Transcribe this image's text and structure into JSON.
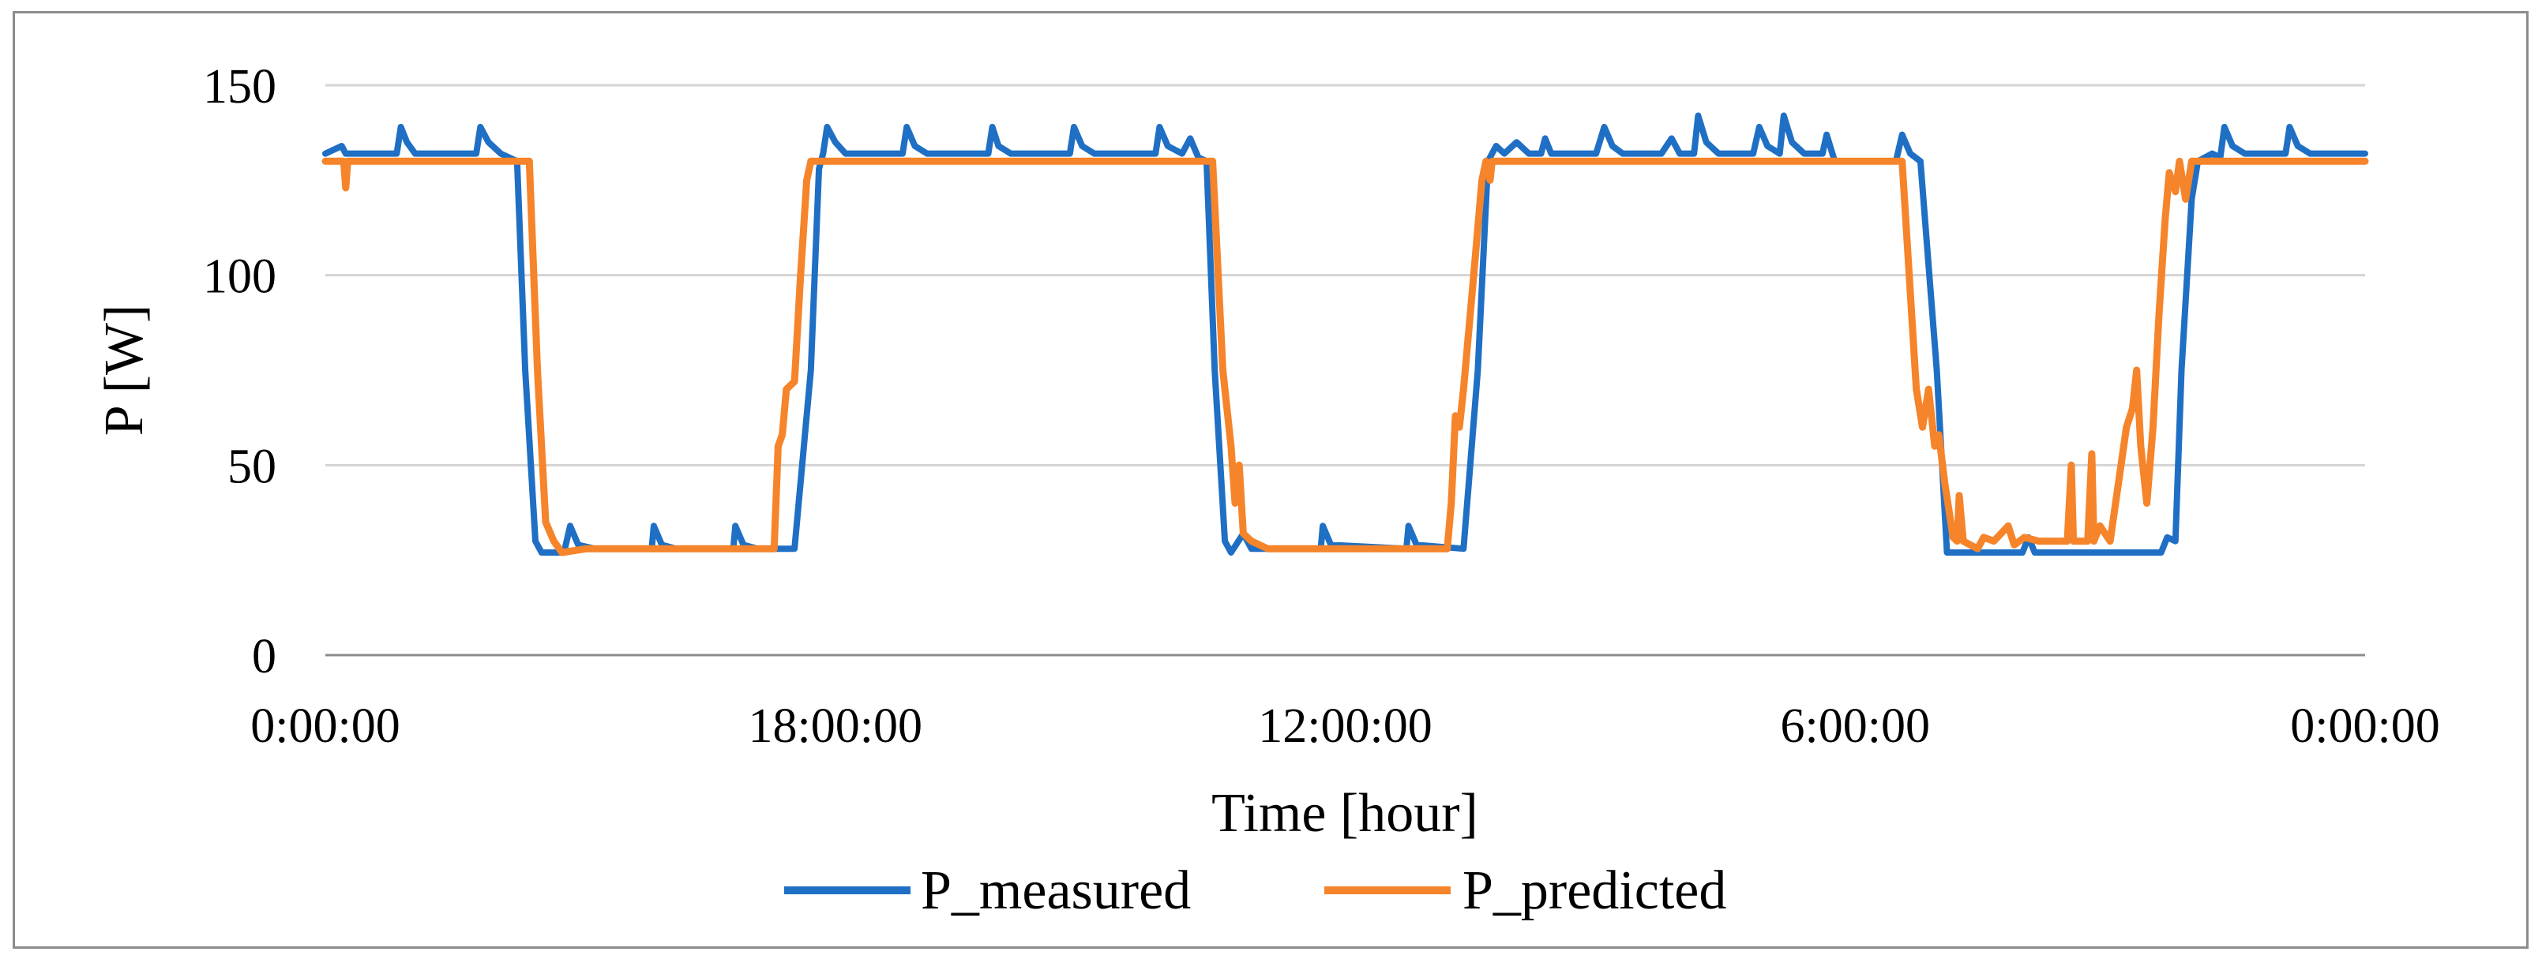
{
  "chart_data": {
    "type": "line",
    "title": "",
    "xlabel": "Time [hour]",
    "ylabel": "P [W]",
    "ylim": [
      0,
      150
    ],
    "yticks": [
      0,
      50,
      100,
      150
    ],
    "xlim": [
      0,
      1
    ],
    "xticks": [
      {
        "label": "0:00:00",
        "x": 0
      },
      {
        "label": "18:00:00",
        "x": 0.25
      },
      {
        "label": "12:00:00",
        "x": 0.5
      },
      {
        "label": "6:00:00",
        "x": 0.75
      },
      {
        "label": "0:00:00",
        "x": 1
      }
    ],
    "grid": true,
    "legend": "bottom",
    "series": [
      {
        "name": "P_measured",
        "color": "#1f6fc4",
        "points": [
          [
            0.0,
            132
          ],
          [
            0.008,
            134
          ],
          [
            0.01,
            132
          ],
          [
            0.035,
            132
          ],
          [
            0.037,
            139
          ],
          [
            0.04,
            135
          ],
          [
            0.044,
            132
          ],
          [
            0.074,
            132
          ],
          [
            0.076,
            139
          ],
          [
            0.08,
            135
          ],
          [
            0.086,
            132
          ],
          [
            0.094,
            130
          ],
          [
            0.098,
            75
          ],
          [
            0.103,
            30
          ],
          [
            0.106,
            27
          ],
          [
            0.117,
            27
          ],
          [
            0.12,
            34
          ],
          [
            0.124,
            29
          ],
          [
            0.132,
            28
          ],
          [
            0.16,
            28
          ],
          [
            0.161,
            34
          ],
          [
            0.165,
            29
          ],
          [
            0.172,
            28
          ],
          [
            0.2,
            28
          ],
          [
            0.201,
            34
          ],
          [
            0.205,
            29
          ],
          [
            0.212,
            28
          ],
          [
            0.23,
            28
          ],
          [
            0.238,
            75
          ],
          [
            0.242,
            128
          ],
          [
            0.244,
            132
          ],
          [
            0.246,
            139
          ],
          [
            0.25,
            135
          ],
          [
            0.255,
            132
          ],
          [
            0.283,
            132
          ],
          [
            0.285,
            139
          ],
          [
            0.289,
            134
          ],
          [
            0.295,
            132
          ],
          [
            0.325,
            132
          ],
          [
            0.327,
            139
          ],
          [
            0.33,
            134
          ],
          [
            0.336,
            132
          ],
          [
            0.365,
            132
          ],
          [
            0.367,
            139
          ],
          [
            0.371,
            134
          ],
          [
            0.377,
            132
          ],
          [
            0.407,
            132
          ],
          [
            0.409,
            139
          ],
          [
            0.413,
            134
          ],
          [
            0.42,
            132
          ],
          [
            0.424,
            136
          ],
          [
            0.428,
            131
          ],
          [
            0.432,
            130
          ],
          [
            0.436,
            75
          ],
          [
            0.441,
            30
          ],
          [
            0.444,
            27
          ],
          [
            0.45,
            32
          ],
          [
            0.454,
            28
          ],
          [
            0.488,
            28
          ],
          [
            0.489,
            34
          ],
          [
            0.493,
            29
          ],
          [
            0.53,
            28
          ],
          [
            0.531,
            34
          ],
          [
            0.535,
            29
          ],
          [
            0.558,
            28
          ],
          [
            0.565,
            75
          ],
          [
            0.57,
            130
          ],
          [
            0.574,
            134
          ],
          [
            0.578,
            132
          ],
          [
            0.584,
            135
          ],
          [
            0.59,
            132
          ],
          [
            0.596,
            132
          ],
          [
            0.598,
            136
          ],
          [
            0.601,
            132
          ],
          [
            0.61,
            132
          ],
          [
            0.615,
            132
          ],
          [
            0.623,
            132
          ],
          [
            0.627,
            139
          ],
          [
            0.631,
            134
          ],
          [
            0.636,
            132
          ],
          [
            0.655,
            132
          ],
          [
            0.66,
            136
          ],
          [
            0.664,
            132
          ],
          [
            0.671,
            132
          ],
          [
            0.673,
            142
          ],
          [
            0.677,
            135
          ],
          [
            0.683,
            132
          ],
          [
            0.7,
            132
          ],
          [
            0.703,
            139
          ],
          [
            0.707,
            134
          ],
          [
            0.713,
            132
          ],
          [
            0.715,
            142
          ],
          [
            0.719,
            135
          ],
          [
            0.725,
            132
          ],
          [
            0.734,
            132
          ],
          [
            0.736,
            137
          ],
          [
            0.74,
            130
          ],
          [
            0.745,
            130
          ],
          [
            0.77,
            130
          ],
          [
            0.773,
            137
          ],
          [
            0.777,
            132
          ],
          [
            0.782,
            130
          ],
          [
            0.79,
            75
          ],
          [
            0.795,
            27
          ],
          [
            0.802,
            27
          ],
          [
            0.814,
            27
          ],
          [
            0.832,
            27
          ],
          [
            0.835,
            31
          ],
          [
            0.838,
            27
          ],
          [
            0.855,
            27
          ],
          [
            0.862,
            27
          ],
          [
            0.9,
            27
          ],
          [
            0.903,
            31
          ],
          [
            0.907,
            30
          ],
          [
            0.91,
            75
          ],
          [
            0.915,
            120
          ],
          [
            0.918,
            130
          ],
          [
            0.925,
            132
          ],
          [
            0.929,
            131
          ],
          [
            0.931,
            139
          ],
          [
            0.935,
            134
          ],
          [
            0.941,
            132
          ],
          [
            0.955,
            132
          ],
          [
            0.961,
            132
          ],
          [
            0.963,
            139
          ],
          [
            0.967,
            134
          ],
          [
            0.973,
            132
          ],
          [
            1.0,
            132
          ]
        ]
      },
      {
        "name": "P_predicted",
        "color": "#f5842a",
        "points": [
          [
            0.0,
            130
          ],
          [
            0.009,
            130
          ],
          [
            0.01,
            123
          ],
          [
            0.011,
            130
          ],
          [
            0.1,
            130
          ],
          [
            0.104,
            75
          ],
          [
            0.108,
            35
          ],
          [
            0.112,
            30
          ],
          [
            0.116,
            27
          ],
          [
            0.128,
            28
          ],
          [
            0.14,
            28
          ],
          [
            0.18,
            28
          ],
          [
            0.192,
            28
          ],
          [
            0.204,
            28
          ],
          [
            0.22,
            28
          ],
          [
            0.222,
            55
          ],
          [
            0.224,
            58
          ],
          [
            0.226,
            70
          ],
          [
            0.23,
            72
          ],
          [
            0.233,
            100
          ],
          [
            0.236,
            125
          ],
          [
            0.238,
            130
          ],
          [
            0.435,
            130
          ],
          [
            0.44,
            75
          ],
          [
            0.444,
            55
          ],
          [
            0.446,
            40
          ],
          [
            0.448,
            50
          ],
          [
            0.45,
            32
          ],
          [
            0.454,
            30
          ],
          [
            0.462,
            28
          ],
          [
            0.474,
            28
          ],
          [
            0.49,
            28
          ],
          [
            0.5,
            28
          ],
          [
            0.52,
            28
          ],
          [
            0.55,
            28
          ],
          [
            0.552,
            40
          ],
          [
            0.554,
            63
          ],
          [
            0.556,
            60
          ],
          [
            0.558,
            70
          ],
          [
            0.563,
            100
          ],
          [
            0.567,
            125
          ],
          [
            0.569,
            130
          ],
          [
            0.571,
            125
          ],
          [
            0.572,
            130
          ],
          [
            0.773,
            130
          ],
          [
            0.78,
            70
          ],
          [
            0.783,
            60
          ],
          [
            0.786,
            70
          ],
          [
            0.789,
            55
          ],
          [
            0.791,
            58
          ],
          [
            0.794,
            45
          ],
          [
            0.796,
            38
          ],
          [
            0.798,
            31
          ],
          [
            0.8,
            30
          ],
          [
            0.801,
            42
          ],
          [
            0.803,
            30
          ],
          [
            0.81,
            28
          ],
          [
            0.813,
            31
          ],
          [
            0.818,
            30
          ],
          [
            0.825,
            34
          ],
          [
            0.828,
            29
          ],
          [
            0.833,
            31
          ],
          [
            0.84,
            30
          ],
          [
            0.846,
            30
          ],
          [
            0.854,
            30
          ],
          [
            0.856,
            50
          ],
          [
            0.857,
            30
          ],
          [
            0.864,
            30
          ],
          [
            0.866,
            53
          ],
          [
            0.867,
            30
          ],
          [
            0.87,
            34
          ],
          [
            0.875,
            30
          ],
          [
            0.883,
            60
          ],
          [
            0.886,
            65
          ],
          [
            0.888,
            75
          ],
          [
            0.89,
            55
          ],
          [
            0.893,
            40
          ],
          [
            0.896,
            60
          ],
          [
            0.899,
            90
          ],
          [
            0.902,
            115
          ],
          [
            0.904,
            127
          ],
          [
            0.907,
            122
          ],
          [
            0.909,
            130
          ],
          [
            0.912,
            120
          ],
          [
            0.915,
            130
          ],
          [
            1.0,
            130
          ]
        ]
      }
    ]
  }
}
